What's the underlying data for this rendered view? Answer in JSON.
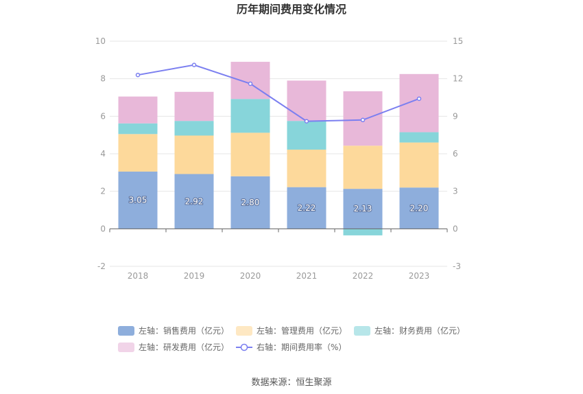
{
  "chart_data": {
    "type": "bar",
    "stacked": true,
    "title": "历年期间费用变化情况",
    "categories": [
      "2018",
      "2019",
      "2020",
      "2021",
      "2022",
      "2023"
    ],
    "left_axis": {
      "ylim": [
        -2,
        10
      ],
      "ticks": [
        "-2",
        "0",
        "2",
        "4",
        "6",
        "8",
        "10"
      ]
    },
    "right_axis": {
      "ylim": [
        -3,
        15
      ],
      "ticks": [
        "-3",
        "0",
        "3",
        "6",
        "9",
        "12",
        "15"
      ]
    },
    "series": [
      {
        "name": "左轴：销售费用（亿元）",
        "axis": "left",
        "color": "#8eaedc",
        "values": [
          3.05,
          2.92,
          2.8,
          2.22,
          2.13,
          2.2
        ],
        "labels": [
          "3.05",
          "2.92",
          "2.80",
          "2.22",
          "2.13",
          "2.20"
        ]
      },
      {
        "name": "左轴：管理费用（亿元）",
        "axis": "left",
        "color": "#fdd99b",
        "values": [
          2.0,
          2.05,
          2.32,
          2.0,
          2.3,
          2.4
        ]
      },
      {
        "name": "左轴：财务费用（亿元）",
        "axis": "left",
        "color": "#87d5da",
        "values": [
          0.57,
          0.78,
          1.8,
          1.53,
          -0.35,
          0.55
        ]
      },
      {
        "name": "左轴：研发费用（亿元）",
        "axis": "left",
        "color": "#e8b8d9",
        "values": [
          1.43,
          1.55,
          1.98,
          2.15,
          2.9,
          3.1
        ]
      }
    ],
    "line_series": {
      "name": "右轴：期间费用率（%）",
      "axis": "right",
      "color": "#7b7ff0",
      "values": [
        12.3,
        13.1,
        11.6,
        8.6,
        8.7,
        10.4
      ]
    },
    "legend": "bottom",
    "grid": true
  },
  "source_label": "数据来源：恒生聚源"
}
